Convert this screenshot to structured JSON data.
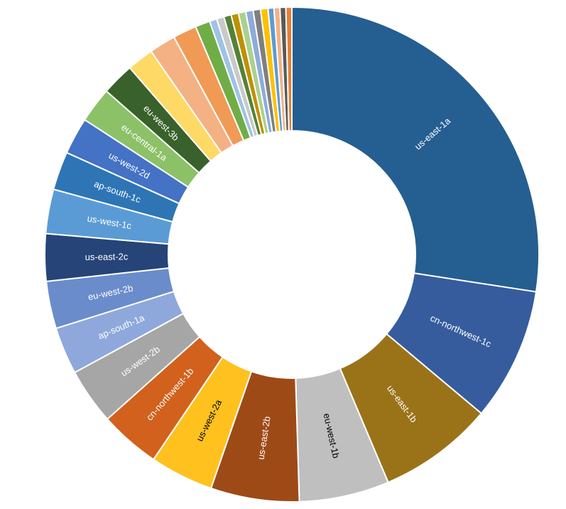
{
  "chart_data": {
    "type": "pie",
    "variant": "doughnut",
    "title": "",
    "legend": "none",
    "slices": [
      {
        "label": "us-east-1a",
        "value": 28.4,
        "color": "#255E91",
        "text_color": "#ffffff"
      },
      {
        "label": "cn-northwest-1c",
        "value": 9.0,
        "color": "#365C9E",
        "text_color": "#ffffff"
      },
      {
        "label": "us-east-1b",
        "value": 7.8,
        "color": "#9A7319",
        "text_color": "#ffffff"
      },
      {
        "label": "eu-west-1b",
        "value": 6.1,
        "color": "#BFBFBF",
        "text_color": "#000000"
      },
      {
        "label": "us-east-2b",
        "value": 6.0,
        "color": "#9E4A17",
        "text_color": "#ffffff"
      },
      {
        "label": "us-west-2a",
        "value": 4.3,
        "color": "#FFC11E",
        "text_color": "#000000"
      },
      {
        "label": "cn-northwest-1b",
        "value": 4.1,
        "color": "#D1611D",
        "text_color": "#ffffff"
      },
      {
        "label": "us-west-2b",
        "value": 3.8,
        "color": "#A6A6A6",
        "text_color": "#ffffff"
      },
      {
        "label": "ap-south-1a",
        "value": 3.2,
        "color": "#8EA8DB",
        "text_color": "#ffffff"
      },
      {
        "label": "eu-west-2b",
        "value": 3.2,
        "color": "#6A8CCB",
        "text_color": "#ffffff"
      },
      {
        "label": "us-east-2c",
        "value": 3.2,
        "color": "#264478",
        "text_color": "#ffffff"
      },
      {
        "label": "us-west-1c",
        "value": 3.0,
        "color": "#5B9BD5",
        "text_color": "#ffffff"
      },
      {
        "label": "ap-south-1c",
        "value": 2.6,
        "color": "#2E75B6",
        "text_color": "#ffffff"
      },
      {
        "label": "us-west-2d",
        "value": 2.5,
        "color": "#4472C4",
        "text_color": "#ffffff"
      },
      {
        "label": "eu-central-1a",
        "value": 2.4,
        "color": "#8CC168",
        "text_color": "#ffffff"
      },
      {
        "label": "eu-west-3b",
        "value": 2.2,
        "color": "#38612B",
        "text_color": "#ffffff"
      },
      {
        "label": "",
        "value": 1.8,
        "color": "#FFD966"
      },
      {
        "label": "",
        "value": 1.8,
        "color": "#F4B183"
      },
      {
        "label": "",
        "value": 1.6,
        "color": "#F09A55"
      },
      {
        "label": "",
        "value": 1.0,
        "color": "#70AD47"
      },
      {
        "label": "",
        "value": 0.5,
        "color": "#9DC3E6"
      },
      {
        "label": "",
        "value": 0.5,
        "color": "#C9C9C9"
      },
      {
        "label": "",
        "value": 0.5,
        "color": "#548235"
      },
      {
        "label": "",
        "value": 0.5,
        "color": "#BF9000"
      },
      {
        "label": "",
        "value": 0.5,
        "color": "#A9D18E"
      },
      {
        "label": "",
        "value": 0.5,
        "color": "#8FAADC"
      },
      {
        "label": "",
        "value": 0.5,
        "color": "#7F7F7F"
      },
      {
        "label": "",
        "value": 0.5,
        "color": "#FFC000"
      },
      {
        "label": "",
        "value": 0.4,
        "color": "#5B9BD5"
      },
      {
        "label": "",
        "value": 0.4,
        "color": "#F4B183"
      },
      {
        "label": "",
        "value": 0.4,
        "color": "#595959"
      },
      {
        "label": "",
        "value": 0.4,
        "color": "#ED7D31"
      }
    ]
  }
}
